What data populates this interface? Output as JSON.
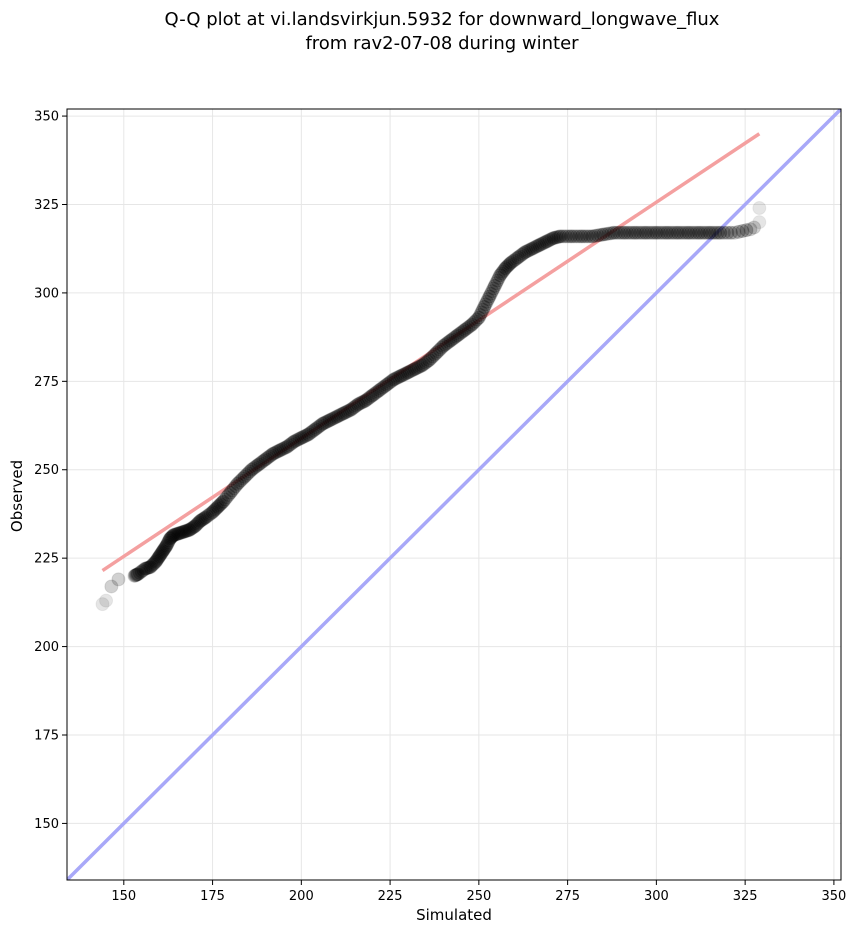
{
  "chart_data": {
    "type": "scatter",
    "title_lines": [
      "Q-Q plot at vi.landsvirkjun.5932 for downward_longwave_flux",
      "from rav2-07-08 during winter"
    ],
    "xlabel": "Simulated",
    "ylabel": "Observed",
    "xlim": [
      134,
      352
    ],
    "ylim": [
      134,
      352
    ],
    "x_ticks": [
      150,
      175,
      200,
      225,
      250,
      275,
      300,
      325,
      350
    ],
    "y_ticks": [
      150,
      175,
      200,
      225,
      250,
      275,
      300,
      325,
      350
    ],
    "grid": true,
    "quantile_points": [
      [
        144.0,
        212.0
      ],
      [
        145.0,
        213.0
      ],
      [
        146.5,
        217.0
      ],
      [
        148.5,
        219.0
      ],
      [
        153.0,
        220.0
      ],
      [
        154.0,
        220.5
      ],
      [
        156.0,
        222.0
      ],
      [
        157.5,
        222.5
      ],
      [
        159.0,
        224.0
      ],
      [
        160.0,
        225.5
      ],
      [
        161.0,
        227.0
      ],
      [
        162.0,
        228.5
      ],
      [
        163.0,
        230.5
      ],
      [
        164.0,
        231.5
      ],
      [
        165.5,
        232.0
      ],
      [
        167.0,
        232.5
      ],
      [
        168.5,
        233.0
      ],
      [
        170.0,
        234.0
      ],
      [
        171.5,
        235.5
      ],
      [
        173.0,
        236.5
      ],
      [
        175.0,
        238.0
      ],
      [
        176.5,
        239.5
      ],
      [
        178.0,
        241.0
      ],
      [
        180.0,
        243.5
      ],
      [
        182.0,
        246.0
      ],
      [
        184.0,
        248.0
      ],
      [
        186.0,
        250.0
      ],
      [
        188.0,
        251.5
      ],
      [
        190.0,
        253.0
      ],
      [
        192.0,
        254.5
      ],
      [
        194.0,
        255.5
      ],
      [
        196.0,
        256.5
      ],
      [
        198.0,
        258.0
      ],
      [
        200.0,
        259.0
      ],
      [
        202.0,
        260.0
      ],
      [
        204.0,
        261.5
      ],
      [
        206.0,
        263.0
      ],
      [
        208.0,
        264.0
      ],
      [
        210.0,
        265.0
      ],
      [
        212.0,
        266.0
      ],
      [
        214.0,
        267.0
      ],
      [
        216.0,
        268.5
      ],
      [
        218.0,
        269.5
      ],
      [
        220.0,
        271.0
      ],
      [
        222.0,
        272.5
      ],
      [
        224.0,
        274.0
      ],
      [
        226.0,
        275.5
      ],
      [
        228.0,
        276.5
      ],
      [
        230.0,
        277.5
      ],
      [
        232.0,
        278.5
      ],
      [
        234.0,
        279.5
      ],
      [
        236.0,
        281.0
      ],
      [
        238.0,
        283.0
      ],
      [
        240.0,
        285.0
      ],
      [
        242.0,
        286.5
      ],
      [
        244.0,
        288.0
      ],
      [
        246.0,
        289.5
      ],
      [
        248.0,
        291.0
      ],
      [
        250.0,
        293.0
      ],
      [
        251.5,
        296.0
      ],
      [
        253.0,
        299.0
      ],
      [
        254.5,
        302.0
      ],
      [
        256.0,
        305.0
      ],
      [
        257.5,
        307.0
      ],
      [
        259.0,
        308.5
      ],
      [
        261.0,
        310.0
      ],
      [
        263.0,
        311.5
      ],
      [
        265.0,
        312.5
      ],
      [
        267.0,
        313.5
      ],
      [
        269.0,
        314.5
      ],
      [
        271.0,
        315.5
      ],
      [
        273.0,
        316.0
      ],
      [
        276.0,
        316.0
      ],
      [
        279.0,
        316.0
      ],
      [
        282.0,
        316.0
      ],
      [
        285.0,
        316.5
      ],
      [
        288.0,
        317.0
      ],
      [
        291.0,
        317.0
      ],
      [
        294.0,
        317.0
      ],
      [
        297.0,
        317.0
      ],
      [
        300.0,
        317.0
      ],
      [
        303.0,
        317.0
      ],
      [
        306.0,
        317.0
      ],
      [
        309.0,
        317.0
      ],
      [
        312.0,
        317.0
      ],
      [
        315.0,
        317.0
      ],
      [
        318.0,
        317.0
      ],
      [
        322.0,
        317.0
      ],
      [
        326.5,
        318.0
      ],
      [
        327.5,
        318.5
      ],
      [
        329.0,
        320.0
      ],
      [
        329.0,
        324.0
      ]
    ],
    "fit_line": {
      "x": [
        144,
        329
      ],
      "y": [
        221.5,
        345
      ],
      "color": "#f4a0a0"
    },
    "identity_line": {
      "color": "#a8a8f8"
    },
    "point_color": "#000000"
  }
}
